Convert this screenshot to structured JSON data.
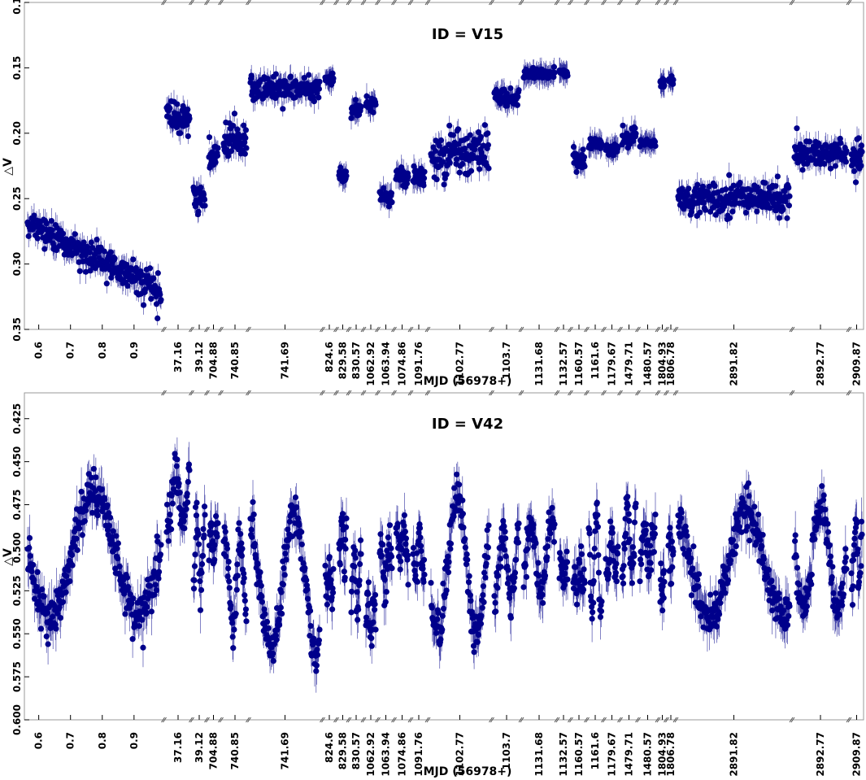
{
  "chart_data": [
    {
      "type": "scatter",
      "title": "ID = V15",
      "xlabel": "MJD (56978+)",
      "ylabel": "△V",
      "y_inverted": true,
      "ylim": [
        0.35,
        0.1
      ],
      "yticks": [
        "0.10",
        "0.15",
        "0.20",
        "0.25",
        "0.30",
        "0.35"
      ],
      "x_axis": "broken",
      "x_segments": [
        {
          "range": [
            0.56,
            0.99
          ],
          "ticks": [
            "0.6",
            "0.7",
            "0.8",
            "0.9"
          ]
        },
        {
          "range": [
            37.14,
            37.18
          ],
          "ticks": [
            "37.16"
          ]
        },
        {
          "range": [
            39.1,
            39.14
          ],
          "ticks": [
            "39.12"
          ]
        },
        {
          "range": [
            704.86,
            704.9
          ],
          "ticks": [
            "704.88"
          ]
        },
        {
          "range": [
            740.83,
            740.87
          ],
          "ticks": [
            "740.85"
          ]
        },
        {
          "range": [
            741.63,
            741.75
          ],
          "ticks": [
            "741.69"
          ]
        },
        {
          "range": [
            824.59,
            824.61
          ],
          "ticks": [
            "824.6"
          ]
        },
        {
          "range": [
            829.57,
            829.59
          ],
          "ticks": [
            "829.58"
          ]
        },
        {
          "range": [
            830.56,
            830.58
          ],
          "ticks": [
            "830.57"
          ]
        },
        {
          "range": [
            1062.91,
            1062.93
          ],
          "ticks": [
            "1062.92"
          ]
        },
        {
          "range": [
            1063.93,
            1063.95
          ],
          "ticks": [
            "1063.94"
          ]
        },
        {
          "range": [
            1074.85,
            1074.87
          ],
          "ticks": [
            "1074.86"
          ]
        },
        {
          "range": [
            1091.75,
            1091.77
          ],
          "ticks": [
            "1091.76"
          ]
        },
        {
          "range": [
            1102.74,
            1102.8
          ],
          "ticks": [
            "1102.77"
          ]
        },
        {
          "range": [
            1103.68,
            1103.72
          ],
          "ticks": [
            "1103.7"
          ]
        },
        {
          "range": [
            1131.66,
            1131.7
          ],
          "ticks": [
            "1131.68"
          ]
        },
        {
          "range": [
            1132.56,
            1132.58
          ],
          "ticks": [
            "1132.57"
          ]
        },
        {
          "range": [
            1160.56,
            1160.58
          ],
          "ticks": [
            "1160.57"
          ]
        },
        {
          "range": [
            1161.59,
            1161.61
          ],
          "ticks": [
            "1161.6"
          ]
        },
        {
          "range": [
            1179.66,
            1179.68
          ],
          "ticks": [
            "1179.67"
          ]
        },
        {
          "range": [
            1479.7,
            1479.72
          ],
          "ticks": [
            "1479.71"
          ]
        },
        {
          "range": [
            1480.56,
            1480.58
          ],
          "ticks": [
            "1480.57"
          ]
        },
        {
          "range": [
            1804.925,
            1804.935
          ],
          "ticks": [
            "1804.93"
          ]
        },
        {
          "range": [
            1806.775,
            1806.785
          ],
          "ticks": [
            "1806.78"
          ]
        },
        {
          "range": [
            2891.74,
            2891.9
          ],
          "ticks": [
            "2891.82"
          ]
        },
        {
          "range": [
            2892.73,
            2892.81
          ],
          "ticks": [
            "2892.77"
          ]
        },
        {
          "range": [
            2909.85,
            2909.89
          ],
          "ticks": [
            "2909.87"
          ]
        }
      ],
      "series": [
        {
          "color": "#00008b",
          "marker": "circle",
          "errorbars": true,
          "segments": [
            {
              "start": 0.27,
              "end": 0.32,
              "scatter": 0.012
            },
            {
              "start": 0.19,
              "end": 0.19,
              "scatter": 0.012
            },
            {
              "start": 0.25,
              "end": 0.25,
              "scatter": 0.012
            },
            {
              "start": 0.22,
              "end": 0.22,
              "scatter": 0.01
            },
            {
              "start": 0.205,
              "end": 0.205,
              "scatter": 0.012
            },
            {
              "start": 0.165,
              "end": 0.165,
              "scatter": 0.01
            },
            {
              "start": 0.158,
              "end": 0.158,
              "scatter": 0.004
            },
            {
              "start": 0.233,
              "end": 0.233,
              "scatter": 0.006
            },
            {
              "start": 0.183,
              "end": 0.183,
              "scatter": 0.006
            },
            {
              "start": 0.177,
              "end": 0.177,
              "scatter": 0.006
            },
            {
              "start": 0.248,
              "end": 0.248,
              "scatter": 0.006
            },
            {
              "start": 0.233,
              "end": 0.233,
              "scatter": 0.006
            },
            {
              "start": 0.232,
              "end": 0.232,
              "scatter": 0.008
            },
            {
              "start": 0.215,
              "end": 0.215,
              "scatter": 0.02
            },
            {
              "start": 0.172,
              "end": 0.172,
              "scatter": 0.008
            },
            {
              "start": 0.155,
              "end": 0.155,
              "scatter": 0.004
            },
            {
              "start": 0.153,
              "end": 0.153,
              "scatter": 0.003
            },
            {
              "start": 0.22,
              "end": 0.22,
              "scatter": 0.01
            },
            {
              "start": 0.208,
              "end": 0.208,
              "scatter": 0.004
            },
            {
              "start": 0.213,
              "end": 0.213,
              "scatter": 0.004
            },
            {
              "start": 0.203,
              "end": 0.203,
              "scatter": 0.008
            },
            {
              "start": 0.207,
              "end": 0.207,
              "scatter": 0.003
            },
            {
              "start": 0.162,
              "end": 0.162,
              "scatter": 0.003
            },
            {
              "start": 0.16,
              "end": 0.16,
              "scatter": 0.003
            },
            {
              "start": 0.25,
              "end": 0.25,
              "scatter": 0.012
            },
            {
              "start": 0.215,
              "end": 0.215,
              "scatter": 0.01
            },
            {
              "start": 0.218,
              "end": 0.218,
              "scatter": 0.012
            }
          ]
        }
      ]
    },
    {
      "type": "scatter",
      "title": "ID = V42",
      "xlabel": "MJD (56978+)",
      "ylabel": "△V",
      "y_inverted": true,
      "ylim": [
        0.6,
        0.41
      ],
      "yticks": [
        "0.425",
        "0.450",
        "0.475",
        "0.500",
        "0.525",
        "0.550",
        "0.575",
        "0.600"
      ],
      "x_axis": "broken",
      "x_segments": "same as first panel",
      "series": [
        {
          "color": "#00008b",
          "marker": "circle",
          "errorbars": true,
          "segments": [
            {
              "center": 0.505,
              "amplitude": 0.035
            },
            {
              "center": 0.47,
              "amplitude": 0.015
            },
            {
              "center": 0.505,
              "amplitude": 0.02
            },
            {
              "center": 0.495,
              "amplitude": 0.008
            },
            {
              "center": 0.52,
              "amplitude": 0.025
            },
            {
              "center": 0.52,
              "amplitude": 0.04
            },
            {
              "center": 0.52,
              "amplitude": 0.01
            },
            {
              "center": 0.495,
              "amplitude": 0.015
            },
            {
              "center": 0.52,
              "amplitude": 0.015
            },
            {
              "center": 0.54,
              "amplitude": 0.01
            },
            {
              "center": 0.51,
              "amplitude": 0.015
            },
            {
              "center": 0.495,
              "amplitude": 0.01
            },
            {
              "center": 0.505,
              "amplitude": 0.012
            },
            {
              "center": 0.51,
              "amplitude": 0.04
            },
            {
              "center": 0.51,
              "amplitude": 0.02
            },
            {
              "center": 0.505,
              "amplitude": 0.02
            },
            {
              "center": 0.515,
              "amplitude": 0.005
            },
            {
              "center": 0.52,
              "amplitude": 0.005
            },
            {
              "center": 0.505,
              "amplitude": 0.03
            },
            {
              "center": 0.505,
              "amplitude": 0.01
            },
            {
              "center": 0.495,
              "amplitude": 0.02
            },
            {
              "center": 0.5,
              "amplitude": 0.01
            },
            {
              "center": 0.525,
              "amplitude": 0.01
            },
            {
              "center": 0.5,
              "amplitude": 0.005
            },
            {
              "center": 0.51,
              "amplitude": 0.03
            },
            {
              "center": 0.505,
              "amplitude": 0.03
            },
            {
              "center": 0.505,
              "amplitude": 0.015
            }
          ]
        }
      ]
    }
  ]
}
